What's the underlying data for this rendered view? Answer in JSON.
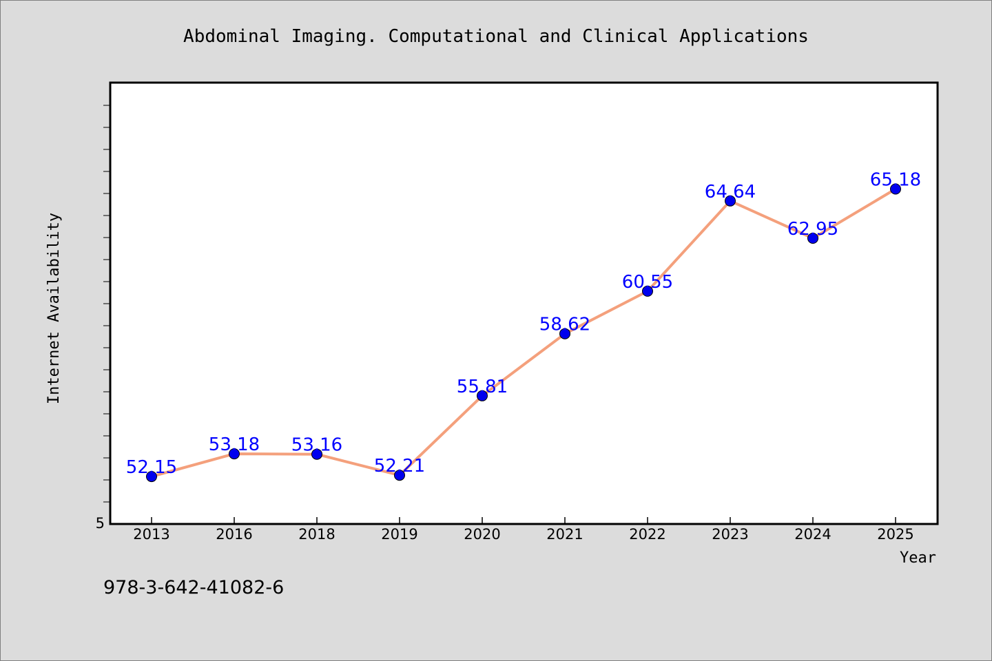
{
  "chart_data": {
    "type": "line",
    "title": "Abdominal Imaging. Computational and Clinical Applications",
    "xlabel": "Year",
    "ylabel": "Internet Availability",
    "categories": [
      "2013",
      "2016",
      "2018",
      "2019",
      "2020",
      "2021",
      "2022",
      "2023",
      "2024",
      "2025"
    ],
    "series": [
      {
        "values": [
          52.15,
          53.18,
          53.16,
          52.21,
          55.81,
          58.62,
          60.55,
          64.64,
          62.95,
          65.18
        ],
        "labels": [
          "52.15",
          "53.18",
          "53.16",
          "52.21",
          "55.81",
          "58.62",
          "60.55",
          "64.64",
          "62.95",
          "65.18"
        ]
      }
    ],
    "y_tick_label": "5",
    "ylim": [
      50,
      70
    ],
    "grid": false,
    "colors": {
      "line": "#f4a07c",
      "marker": "#0000ee",
      "label": "#0000ff",
      "frame": "#000000"
    }
  },
  "footer": {
    "isbn": "978-3-642-41082-6"
  }
}
